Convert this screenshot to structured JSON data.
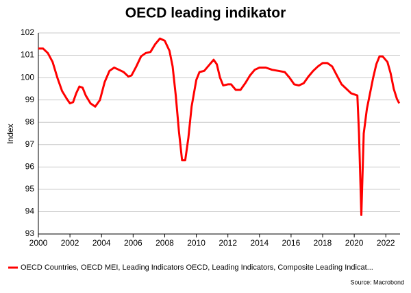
{
  "chart_data": {
    "type": "line",
    "title": "OECD leading indikator",
    "y_label": "Index",
    "source": "Source: Macrobond",
    "xlim": [
      2000,
      2022.9
    ],
    "xticks": [
      2000,
      2002,
      2004,
      2006,
      2008,
      2010,
      2012,
      2014,
      2016,
      2018,
      2020,
      2022
    ],
    "ylim": [
      93,
      102
    ],
    "yticks": [
      93,
      94,
      95,
      96,
      97,
      98,
      99,
      100,
      101,
      102
    ],
    "grid": true,
    "legend": "bottom",
    "x": [
      2000.0,
      2000.3,
      2000.6,
      2000.9,
      2001.2,
      2001.5,
      2001.8,
      2002.0,
      2002.2,
      2002.4,
      2002.6,
      2002.8,
      2003.0,
      2003.3,
      2003.6,
      2003.9,
      2004.2,
      2004.5,
      2004.8,
      2005.1,
      2005.4,
      2005.7,
      2005.9,
      2006.2,
      2006.5,
      2006.8,
      2007.1,
      2007.4,
      2007.7,
      2008.0,
      2008.3,
      2008.5,
      2008.7,
      2008.9,
      2009.1,
      2009.3,
      2009.5,
      2009.7,
      2010.0,
      2010.2,
      2010.5,
      2010.8,
      2011.1,
      2011.3,
      2011.5,
      2011.7,
      2012.0,
      2012.2,
      2012.5,
      2012.8,
      2013.1,
      2013.4,
      2013.7,
      2014.0,
      2014.4,
      2014.8,
      2015.2,
      2015.6,
      2015.9,
      2016.2,
      2016.5,
      2016.8,
      2017.1,
      2017.4,
      2017.7,
      2018.0,
      2018.3,
      2018.6,
      2018.9,
      2019.2,
      2019.5,
      2019.8,
      2020.0,
      2020.2,
      2020.3,
      2020.45,
      2020.6,
      2020.8,
      2021.0,
      2021.2,
      2021.4,
      2021.6,
      2021.8,
      2022.1,
      2022.3,
      2022.5,
      2022.7,
      2022.85
    ],
    "series": [
      {
        "name": "OECD Countries, OECD MEI, Leading Indicators OECD, Leading Indicators, Composite Leading Indicat...",
        "color": "#ff0000",
        "values": [
          101.3,
          101.3,
          101.1,
          100.7,
          100.0,
          99.4,
          99.05,
          98.85,
          98.9,
          99.3,
          99.6,
          99.55,
          99.2,
          98.85,
          98.7,
          99.0,
          99.8,
          100.3,
          100.45,
          100.35,
          100.25,
          100.05,
          100.1,
          100.5,
          100.95,
          101.1,
          101.15,
          101.5,
          101.75,
          101.65,
          101.2,
          100.5,
          99.2,
          97.6,
          96.3,
          96.3,
          97.3,
          98.7,
          99.9,
          100.25,
          100.3,
          100.55,
          100.8,
          100.6,
          100.0,
          99.65,
          99.7,
          99.7,
          99.45,
          99.45,
          99.75,
          100.1,
          100.35,
          100.45,
          100.45,
          100.35,
          100.3,
          100.25,
          100.0,
          99.7,
          99.65,
          99.75,
          100.05,
          100.3,
          100.5,
          100.65,
          100.65,
          100.5,
          100.1,
          99.7,
          99.5,
          99.3,
          99.25,
          99.2,
          97.5,
          93.85,
          97.5,
          98.6,
          99.3,
          100.0,
          100.6,
          100.95,
          100.95,
          100.7,
          100.2,
          99.5,
          99.05,
          98.85
        ]
      }
    ]
  }
}
